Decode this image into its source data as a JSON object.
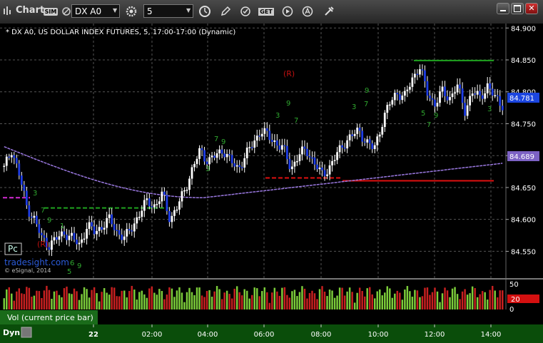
{
  "window": {
    "title": "Chart",
    "symbol": "DX A0",
    "interval": "5",
    "controls": [
      "minimize-icon",
      "maximize-icon",
      "close-icon"
    ]
  },
  "toolbar_icons": [
    "sim-icon",
    "gear-icon",
    "clock-icon",
    "pencil-icon",
    "refresh-icon",
    "get-icon",
    "play-icon",
    "alert-icon",
    "tools-icon"
  ],
  "toolbar_text": {
    "sim": "SIM",
    "get": "GET"
  },
  "chart_info": {
    "heading": "* DX A0, US DOLLAR INDEX FUTURES, 5, 17:00-17:00 (Dynamic)",
    "pc_label": "Pc",
    "r_label_1": "(R)",
    "r_label_2": "(R)",
    "watermark": "tradesight.com",
    "copyright": "© eSignal, 2014"
  },
  "price_axis": {
    "ticks": [
      "84.900",
      "84.850",
      "84.800",
      "84.750",
      "84.700",
      "84.650",
      "84.600",
      "84.550"
    ],
    "current_price": "84.781",
    "ma_value": "84.689"
  },
  "volume_pane": {
    "label": "Vol (current price bar)",
    "ticks": [
      "50",
      "0"
    ],
    "current": "20"
  },
  "time_axis": {
    "dyn_label": "Dyn",
    "ticks": [
      "22",
      "02:00",
      "04:00",
      "06:00",
      "08:00",
      "10:00",
      "12:00",
      "14:00"
    ]
  },
  "chart_data": {
    "type": "candlestick",
    "title": "* DX A0, US DOLLAR INDEX FUTURES, 5, 17:00-17:00 (Dynamic)",
    "y_ticks": [
      84.9,
      84.85,
      84.8,
      84.75,
      84.7,
      84.65,
      84.6,
      84.55
    ],
    "ylim": [
      84.508,
      84.907
    ],
    "x_ticks": [
      "22",
      "02:00",
      "04:00",
      "06:00",
      "08:00",
      "10:00",
      "12:00",
      "14:00"
    ],
    "grid": true,
    "levels": [
      {
        "name": "magenta",
        "value": 84.634,
        "color": "#d42ad4"
      },
      {
        "name": "green-1",
        "value": 84.618,
        "color": "#1fa31f"
      },
      {
        "name": "red",
        "value": 84.665,
        "color": "#e01010"
      },
      {
        "name": "green-2",
        "value": 84.849,
        "color": "#1fa31f"
      }
    ],
    "moving_average_last": 84.689,
    "close_waypoints": [
      84.68,
      84.71,
      84.67,
      84.62,
      84.6,
      84.57,
      84.56,
      84.57,
      84.58,
      84.57,
      84.56,
      84.59,
      84.58,
      84.59,
      84.6,
      84.58,
      84.57,
      84.59,
      84.61,
      84.63,
      84.62,
      84.64,
      84.6,
      84.62,
      84.65,
      84.68,
      84.71,
      84.69,
      84.7,
      84.71,
      84.69,
      84.68,
      84.7,
      84.72,
      84.74,
      84.73,
      84.72,
      84.71,
      84.68,
      84.7,
      84.71,
      84.69,
      84.67,
      84.68,
      84.7,
      84.72,
      84.73,
      84.74,
      84.72,
      84.71,
      84.75,
      84.78,
      84.8,
      84.79,
      84.82,
      84.84,
      84.8,
      84.78,
      84.8,
      84.79,
      84.81,
      84.77,
      84.8,
      84.79,
      84.81,
      84.79,
      84.78
    ],
    "volume_ticks": [
      50,
      0
    ],
    "volume_current": 20
  }
}
